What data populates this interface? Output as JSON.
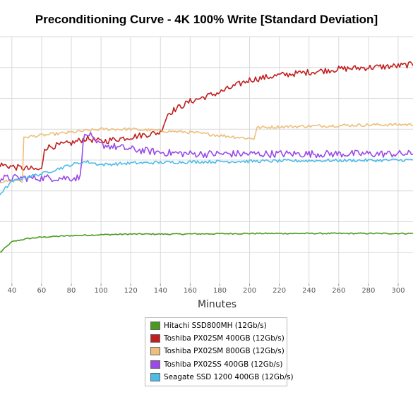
{
  "chart_data": {
    "type": "line",
    "title": "Preconditioning Curve - 4K 100% Write [Standard Deviation]",
    "xlabel": "Minutes",
    "ylabel": "",
    "xlim": [
      32,
      310
    ],
    "ylim": [
      0,
      8
    ],
    "x_ticks": [
      40,
      60,
      80,
      100,
      120,
      140,
      160,
      180,
      200,
      220,
      240,
      260,
      280,
      300
    ],
    "grid": true,
    "legend_position": "bottom",
    "series": [
      {
        "name": "Hitachi SSD800MH (12Gb/s)",
        "color": "#4a9a1f",
        "x": [
          32,
          40,
          50,
          60,
          80,
          100,
          120,
          150,
          200,
          250,
          300,
          310
        ],
        "y": [
          1.0,
          1.35,
          1.45,
          1.5,
          1.55,
          1.58,
          1.6,
          1.6,
          1.62,
          1.62,
          1.62,
          1.62
        ],
        "noise": 0.02
      },
      {
        "name": "Toshiba PX02SM 400GB (12Gb/s)",
        "color": "#c0201f",
        "x": [
          32,
          45,
          55,
          60,
          62,
          80,
          90,
          100,
          120,
          140,
          145,
          150,
          160,
          180,
          200,
          220,
          240,
          260,
          280,
          300,
          310
        ],
        "y": [
          3.85,
          3.75,
          3.7,
          3.68,
          4.4,
          4.55,
          4.7,
          4.6,
          4.75,
          4.9,
          5.5,
          5.65,
          5.9,
          6.2,
          6.6,
          6.75,
          6.85,
          6.95,
          7.0,
          7.05,
          7.1
        ],
        "noise": 0.1
      },
      {
        "name": "Toshiba PX02SM 800GB (12Gb/s)",
        "color": "#ecbf7c",
        "x": [
          32,
          45,
          47,
          48,
          50,
          60,
          80,
          100,
          120,
          140,
          160,
          180,
          200,
          203,
          205,
          220,
          240,
          260,
          280,
          300,
          310
        ],
        "y": [
          3.3,
          3.35,
          3.3,
          4.7,
          4.75,
          4.8,
          4.9,
          5.0,
          5.0,
          4.95,
          4.9,
          4.8,
          4.7,
          4.7,
          5.05,
          5.08,
          5.1,
          5.12,
          5.14,
          5.15,
          5.15
        ],
        "noise": 0.05
      },
      {
        "name": "Toshiba PX02SS 400GB (12Gb/s)",
        "color": "#9a4ae6",
        "x": [
          32,
          40,
          60,
          80,
          86,
          88,
          92,
          96,
          100,
          120,
          140,
          160,
          180,
          200,
          240,
          280,
          310
        ],
        "y": [
          3.4,
          3.42,
          3.42,
          3.42,
          3.43,
          4.7,
          4.85,
          4.55,
          4.5,
          4.35,
          4.25,
          4.2,
          4.2,
          4.2,
          4.2,
          4.2,
          4.2
        ],
        "noise": 0.12
      },
      {
        "name": "Seagate SSD 1200 400GB (12Gb/s)",
        "color": "#4bbce8",
        "x": [
          32,
          40,
          50,
          60,
          70,
          80,
          90,
          100,
          120,
          140,
          160,
          200,
          240,
          280,
          310
        ],
        "y": [
          2.9,
          3.3,
          3.45,
          3.55,
          3.7,
          3.85,
          3.95,
          3.85,
          3.9,
          3.92,
          3.94,
          3.96,
          3.98,
          3.99,
          4.0
        ],
        "noise": 0.05
      }
    ]
  }
}
